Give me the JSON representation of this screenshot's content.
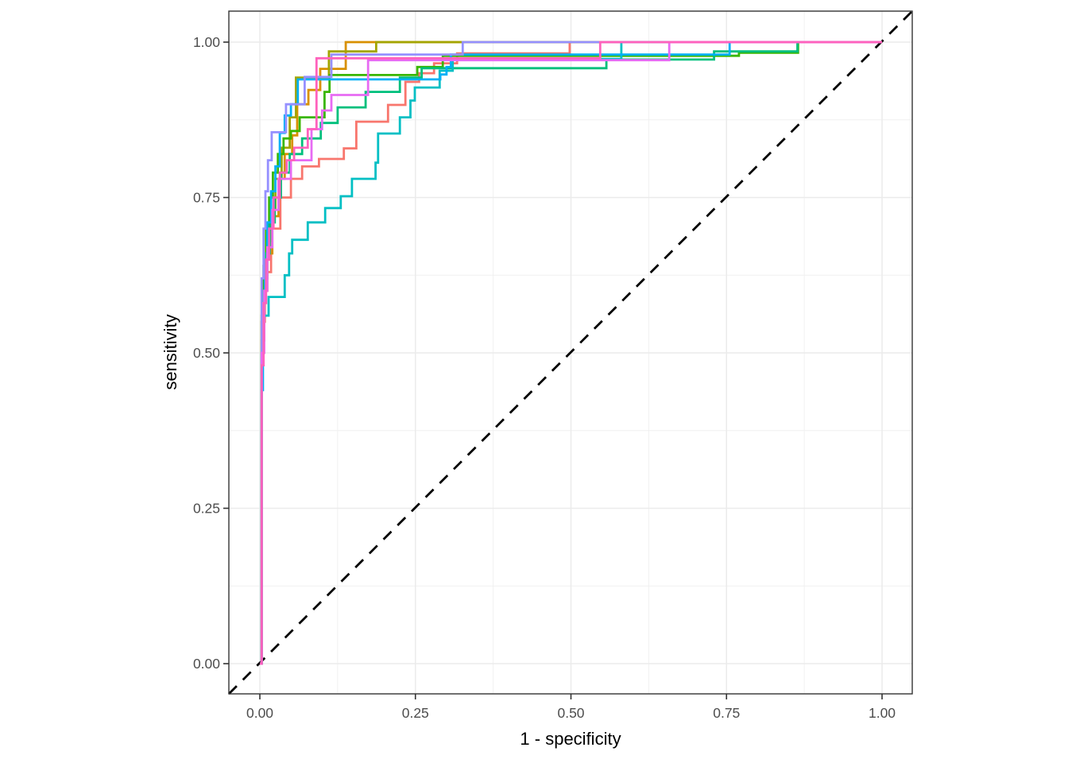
{
  "chart_data": {
    "type": "line",
    "subtype": "roc-step-curves",
    "title": "",
    "xlabel": "1 - specificity",
    "ylabel": "sensitivity",
    "xlim": [
      0,
      1
    ],
    "ylim": [
      0,
      1
    ],
    "grid": {
      "major": true,
      "minor": true,
      "major_values": [
        0,
        0.25,
        0.5,
        0.75,
        1
      ],
      "minor_values": [
        0.125,
        0.375,
        0.625,
        0.875
      ]
    },
    "x_ticks": {
      "values": [
        0,
        0.25,
        0.5,
        0.75,
        1
      ],
      "labels": [
        "0.00",
        "0.25",
        "0.50",
        "0.75",
        "1.00"
      ]
    },
    "y_ticks": {
      "values": [
        0,
        0.25,
        0.5,
        0.75,
        1
      ],
      "labels": [
        "0.00",
        "0.25",
        "0.50",
        "0.75",
        "1.00"
      ]
    },
    "legend": "none",
    "reference_line": {
      "shape": "diagonal",
      "from": [
        0,
        0
      ],
      "to": [
        1,
        1
      ],
      "style": "dashed",
      "color": "#000000"
    },
    "series": [
      {
        "name": "roc-curve-1",
        "color": "#F8766D",
        "points": [
          [
            0,
            0
          ],
          [
            0.003,
            0.55
          ],
          [
            0.008,
            0.63
          ],
          [
            0.018,
            0.7
          ],
          [
            0.033,
            0.75
          ],
          [
            0.05,
            0.78
          ],
          [
            0.068,
            0.8
          ],
          [
            0.095,
            0.812
          ],
          [
            0.135,
            0.829
          ],
          [
            0.155,
            0.872
          ],
          [
            0.206,
            0.899
          ],
          [
            0.234,
            0.936
          ],
          [
            0.256,
            0.95
          ],
          [
            0.28,
            0.966
          ],
          [
            0.317,
            0.982
          ],
          [
            0.498,
            1.0
          ],
          [
            1,
            1
          ]
        ]
      },
      {
        "name": "roc-curve-2",
        "color": "#D89000",
        "points": [
          [
            0,
            0
          ],
          [
            0.003,
            0.52
          ],
          [
            0.007,
            0.6
          ],
          [
            0.012,
            0.66
          ],
          [
            0.02,
            0.72
          ],
          [
            0.03,
            0.78
          ],
          [
            0.04,
            0.82
          ],
          [
            0.052,
            0.85
          ],
          [
            0.06,
            0.9
          ],
          [
            0.078,
            0.923
          ],
          [
            0.097,
            0.957
          ],
          [
            0.138,
            1.0
          ],
          [
            1,
            1
          ]
        ]
      },
      {
        "name": "roc-curve-3",
        "color": "#A3A500",
        "points": [
          [
            0,
            0
          ],
          [
            0.003,
            0.55
          ],
          [
            0.007,
            0.62
          ],
          [
            0.012,
            0.68
          ],
          [
            0.018,
            0.73
          ],
          [
            0.025,
            0.78
          ],
          [
            0.035,
            0.83
          ],
          [
            0.048,
            0.879
          ],
          [
            0.058,
            0.943
          ],
          [
            0.111,
            0.985
          ],
          [
            0.187,
            1.0
          ],
          [
            1,
            1
          ]
        ]
      },
      {
        "name": "roc-curve-4",
        "color": "#39B600",
        "points": [
          [
            0,
            0
          ],
          [
            0.003,
            0.56
          ],
          [
            0.006,
            0.64
          ],
          [
            0.01,
            0.7
          ],
          [
            0.015,
            0.75
          ],
          [
            0.021,
            0.79
          ],
          [
            0.029,
            0.82
          ],
          [
            0.038,
            0.845
          ],
          [
            0.05,
            0.857
          ],
          [
            0.064,
            0.879
          ],
          [
            0.104,
            0.92
          ],
          [
            0.112,
            0.947
          ],
          [
            0.253,
            0.96
          ],
          [
            0.294,
            0.978
          ],
          [
            0.77,
            0.983
          ],
          [
            0.865,
            1.0
          ],
          [
            1,
            1
          ]
        ]
      },
      {
        "name": "roc-curve-5",
        "color": "#00BF7C",
        "points": [
          [
            0,
            0
          ],
          [
            0.003,
            0.5
          ],
          [
            0.006,
            0.6
          ],
          [
            0.01,
            0.66
          ],
          [
            0.016,
            0.71
          ],
          [
            0.024,
            0.75
          ],
          [
            0.034,
            0.79
          ],
          [
            0.048,
            0.82
          ],
          [
            0.068,
            0.845
          ],
          [
            0.098,
            0.87
          ],
          [
            0.125,
            0.895
          ],
          [
            0.17,
            0.92
          ],
          [
            0.225,
            0.943
          ],
          [
            0.26,
            0.958
          ],
          [
            0.557,
            0.972
          ],
          [
            0.73,
            0.985
          ],
          [
            0.864,
            1.0
          ],
          [
            1,
            1
          ]
        ]
      },
      {
        "name": "roc-curve-6",
        "color": "#00BFC4",
        "points": [
          [
            0,
            0
          ],
          [
            0.003,
            0.5
          ],
          [
            0.006,
            0.56
          ],
          [
            0.014,
            0.59
          ],
          [
            0.04,
            0.625
          ],
          [
            0.047,
            0.66
          ],
          [
            0.052,
            0.682
          ],
          [
            0.077,
            0.71
          ],
          [
            0.105,
            0.733
          ],
          [
            0.13,
            0.752
          ],
          [
            0.148,
            0.78
          ],
          [
            0.186,
            0.806
          ],
          [
            0.19,
            0.853
          ],
          [
            0.225,
            0.879
          ],
          [
            0.242,
            0.906
          ],
          [
            0.249,
            0.927
          ],
          [
            0.289,
            0.954
          ],
          [
            0.31,
            0.973
          ],
          [
            0.581,
            1.0
          ],
          [
            1,
            1
          ]
        ]
      },
      {
        "name": "roc-curve-7",
        "color": "#00B0F6",
        "points": [
          [
            0,
            0
          ],
          [
            0.003,
            0.44
          ],
          [
            0.005,
            0.58
          ],
          [
            0.008,
            0.65
          ],
          [
            0.012,
            0.71
          ],
          [
            0.018,
            0.76
          ],
          [
            0.025,
            0.8
          ],
          [
            0.032,
            0.854
          ],
          [
            0.04,
            0.882
          ],
          [
            0.05,
            0.9
          ],
          [
            0.061,
            0.94
          ],
          [
            0.29,
            0.948
          ],
          [
            0.3,
            0.96
          ],
          [
            0.307,
            0.98
          ],
          [
            0.755,
            1.0
          ],
          [
            1,
            1
          ]
        ]
      },
      {
        "name": "roc-curve-8",
        "color": "#9590FF",
        "points": [
          [
            0,
            0
          ],
          [
            0.003,
            0.62
          ],
          [
            0.006,
            0.7
          ],
          [
            0.009,
            0.76
          ],
          [
            0.013,
            0.81
          ],
          [
            0.019,
            0.855
          ],
          [
            0.042,
            0.9
          ],
          [
            0.072,
            0.944
          ],
          [
            0.115,
            0.98
          ],
          [
            0.326,
            1.0
          ],
          [
            1,
            1
          ]
        ]
      },
      {
        "name": "roc-curve-9",
        "color": "#E76BF3",
        "points": [
          [
            0,
            0
          ],
          [
            0.003,
            0.5
          ],
          [
            0.007,
            0.6
          ],
          [
            0.012,
            0.67
          ],
          [
            0.02,
            0.73
          ],
          [
            0.03,
            0.78
          ],
          [
            0.05,
            0.81
          ],
          [
            0.083,
            0.86
          ],
          [
            0.1,
            0.89
          ],
          [
            0.115,
            0.915
          ],
          [
            0.174,
            0.971
          ],
          [
            0.658,
            1.0
          ],
          [
            1,
            1
          ]
        ]
      },
      {
        "name": "roc-curve-10",
        "color": "#FF62BC",
        "points": [
          [
            0,
            0
          ],
          [
            0.003,
            0.48
          ],
          [
            0.006,
            0.58
          ],
          [
            0.01,
            0.65
          ],
          [
            0.015,
            0.7
          ],
          [
            0.022,
            0.75
          ],
          [
            0.032,
            0.79
          ],
          [
            0.043,
            0.81
          ],
          [
            0.055,
            0.83
          ],
          [
            0.077,
            0.86
          ],
          [
            0.091,
            0.974
          ],
          [
            0.547,
            1.0
          ],
          [
            1,
            1
          ]
        ]
      }
    ]
  },
  "style": {
    "background": "#FFFFFF",
    "panel_background": "#FFFFFF",
    "grid_major_color": "#EBEBEB",
    "grid_minor_color": "#F0F0F0",
    "panel_border_color": "#333333",
    "tick_color": "#333333",
    "tick_label_color": "#4D4D4D",
    "axis_title_color": "#000000",
    "curve_width": 2.8,
    "dash_pattern": "14 11"
  }
}
